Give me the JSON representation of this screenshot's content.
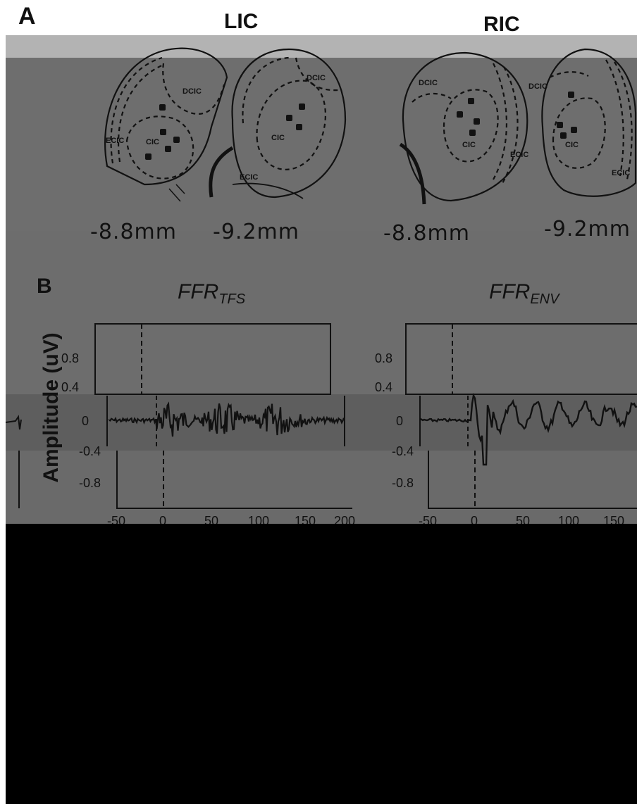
{
  "panel_a": {
    "letter": "A",
    "left_title": "LIC",
    "right_title": "RIC",
    "region_labels": {
      "dcic": "DCIC",
      "cic": "CIC",
      "ecic": "ECIC"
    },
    "depths": [
      "-8.8mm",
      "-9.2mm",
      "-8.8mm",
      "-9.2mm"
    ]
  },
  "panel_b": {
    "letter": "B",
    "left_title_main": "FFR",
    "left_title_sub": "TFS",
    "right_title_main": "FFR",
    "right_title_sub": "ENV",
    "ylabel": "Amplitude (uV)",
    "y_ticks": [
      "0.8",
      "0.4",
      "0",
      "-0.4",
      "-0.8"
    ],
    "x_ticks": [
      "-50",
      "0",
      "50",
      "100",
      "150",
      "200"
    ]
  },
  "colors": {
    "band_light": "#b3b3b3",
    "band_mid": "#6e6e6e",
    "band_dark": "#5a5a5a",
    "black": "#000000"
  }
}
